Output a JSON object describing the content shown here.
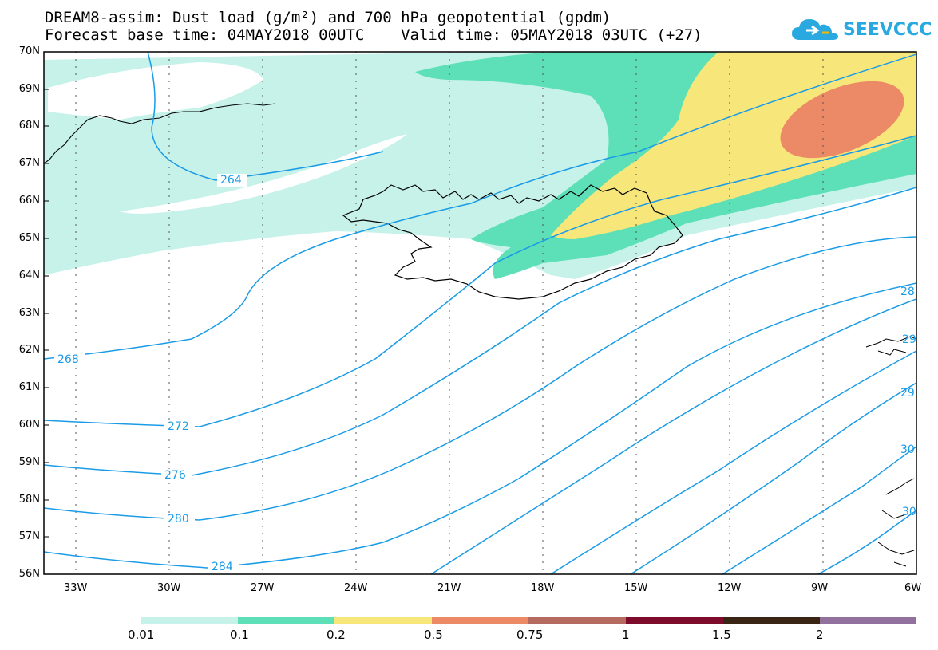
{
  "header": {
    "line1": "DREAM8-assim: Dust load (g/m²) and 700 hPa geopotential (gpdm)",
    "line2": "Forecast base time: 04MAY2018 00UTC    Valid time: 05MAY2018 03UTC (+27)"
  },
  "logo": {
    "text": "SEEVCCC",
    "icon": "cloud-icon",
    "color": "#2aa9e0"
  },
  "axes": {
    "lat_labels": [
      "70N",
      "69N",
      "68N",
      "67N",
      "66N",
      "65N",
      "64N",
      "63N",
      "62N",
      "61N",
      "60N",
      "59N",
      "58N",
      "57N",
      "56N"
    ],
    "lon_labels": [
      "33W",
      "30W",
      "27W",
      "24W",
      "21W",
      "18W",
      "15W",
      "12W",
      "9W",
      "6W"
    ]
  },
  "contours": {
    "color": "#1a9be6",
    "labels": [
      "264",
      "268",
      "272",
      "276",
      "280",
      "284",
      "28",
      "29",
      "29",
      "30",
      "30"
    ]
  },
  "colorbar": {
    "labels": [
      "0.01",
      "0.1",
      "0.2",
      "0.5",
      "0.75",
      "1",
      "1.5",
      "2"
    ],
    "colors": [
      "#c6f2ea",
      "#5de0b8",
      "#f7e679",
      "#ec8966",
      "#b56b60",
      "#7d0b2c",
      "#3a2414",
      "#93719f"
    ]
  }
}
